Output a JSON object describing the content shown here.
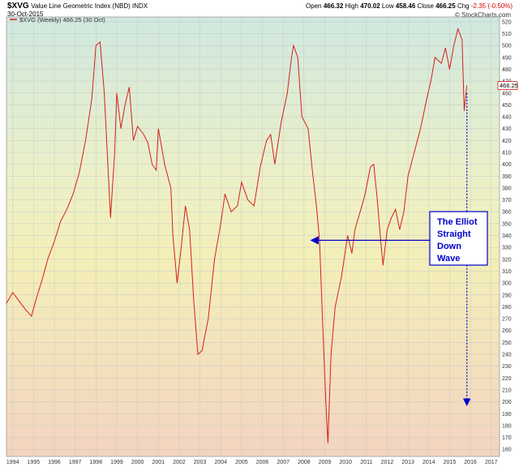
{
  "header": {
    "symbol": "$XVG",
    "name": "Value Line Geometric Index (NBD) INDX",
    "date": "30-Oct-2015",
    "open_label": "Open",
    "open": "466.32",
    "high_label": "High",
    "high": "470.02",
    "low_label": "Low",
    "low": "458.46",
    "close_label": "Close",
    "close": "466.25",
    "chg_label": "Chg",
    "chg": "-2.35 (-0.50%)",
    "credit": "© StockCharts.com"
  },
  "colors": {
    "line": "#d81e1e",
    "arrow": "#0000cc",
    "grid": "#c8c8c8"
  },
  "chart_data": {
    "type": "line",
    "legend": "$XVG (Weekly) 466.25 (30 Oct)",
    "last_value_label": "466.25",
    "xlabel": "",
    "ylabel": "",
    "xlim": [
      1993.7,
      2017.4
    ],
    "ylim": [
      154,
      524
    ],
    "y_ticks": [
      160,
      170,
      180,
      190,
      200,
      210,
      220,
      230,
      240,
      250,
      260,
      270,
      280,
      290,
      300,
      310,
      320,
      330,
      340,
      350,
      360,
      370,
      380,
      390,
      400,
      410,
      420,
      430,
      440,
      450,
      460,
      470,
      480,
      490,
      500,
      510,
      520
    ],
    "x_ticks": [
      "1994",
      "1995",
      "1996",
      "1997",
      "1998",
      "1999",
      "2000",
      "2001",
      "2002",
      "2003",
      "2004",
      "2005",
      "2006",
      "2007",
      "2008",
      "2009",
      "2010",
      "2011",
      "2012",
      "2013",
      "2014",
      "2015",
      "2016",
      "2017"
    ],
    "grid": true,
    "series": [
      {
        "x": [
          1993.7,
          1994.0,
          1994.3,
          1994.6,
          1994.9,
          1995.1,
          1995.4,
          1995.7,
          1996.0,
          1996.3,
          1996.6,
          1996.9,
          1997.2,
          1997.5,
          1997.8,
          1998.0,
          1998.2,
          1998.4,
          1998.6,
          1998.7,
          1998.9,
          1999.0,
          1999.2,
          1999.4,
          1999.6,
          1999.8,
          2000.0,
          2000.3,
          2000.5,
          2000.7,
          2000.9,
          2001.0,
          2001.3,
          2001.6,
          2001.7,
          2001.9,
          2002.1,
          2002.3,
          2002.5,
          2002.7,
          2002.9,
          2003.1,
          2003.4,
          2003.7,
          2004.0,
          2004.2,
          2004.5,
          2004.8,
          2005.0,
          2005.3,
          2005.6,
          2005.9,
          2006.2,
          2006.4,
          2006.6,
          2006.9,
          2007.2,
          2007.4,
          2007.5,
          2007.7,
          2007.9,
          2008.2,
          2008.4,
          2008.6,
          2008.75,
          2008.9,
          2009.05,
          2009.15,
          2009.3,
          2009.5,
          2009.8,
          2010.1,
          2010.3,
          2010.45,
          2010.7,
          2010.9,
          2011.2,
          2011.35,
          2011.5,
          2011.7,
          2011.8,
          2012.0,
          2012.2,
          2012.4,
          2012.6,
          2012.8,
          2013.0,
          2013.3,
          2013.6,
          2013.9,
          2014.1,
          2014.3,
          2014.6,
          2014.8,
          2015.0,
          2015.2,
          2015.4,
          2015.6,
          2015.7,
          2015.83
        ],
        "values": [
          283,
          292,
          285,
          278,
          272,
          285,
          302,
          321,
          335,
          352,
          362,
          375,
          393,
          420,
          455,
          500,
          503,
          460,
          390,
          355,
          410,
          460,
          430,
          450,
          465,
          420,
          432,
          425,
          418,
          400,
          395,
          430,
          400,
          380,
          340,
          300,
          330,
          365,
          345,
          285,
          240,
          243,
          270,
          320,
          350,
          375,
          360,
          365,
          385,
          370,
          365,
          398,
          420,
          425,
          400,
          435,
          460,
          490,
          500,
          490,
          440,
          430,
          395,
          365,
          335,
          265,
          200,
          165,
          240,
          280,
          305,
          340,
          325,
          345,
          360,
          372,
          398,
          400,
          375,
          333,
          315,
          345,
          355,
          362,
          345,
          360,
          390,
          410,
          430,
          455,
          470,
          490,
          485,
          498,
          480,
          500,
          514,
          505,
          445,
          466.25
        ]
      }
    ],
    "annotation": {
      "text_lines": [
        "The Elliot",
        "Straight",
        "Down",
        "Wave"
      ],
      "arrow_left_target": [
        2008.4,
        336
      ],
      "arrow_down_from": [
        2015.83,
        460
      ],
      "arrow_down_to": [
        2015.83,
        198
      ]
    }
  }
}
